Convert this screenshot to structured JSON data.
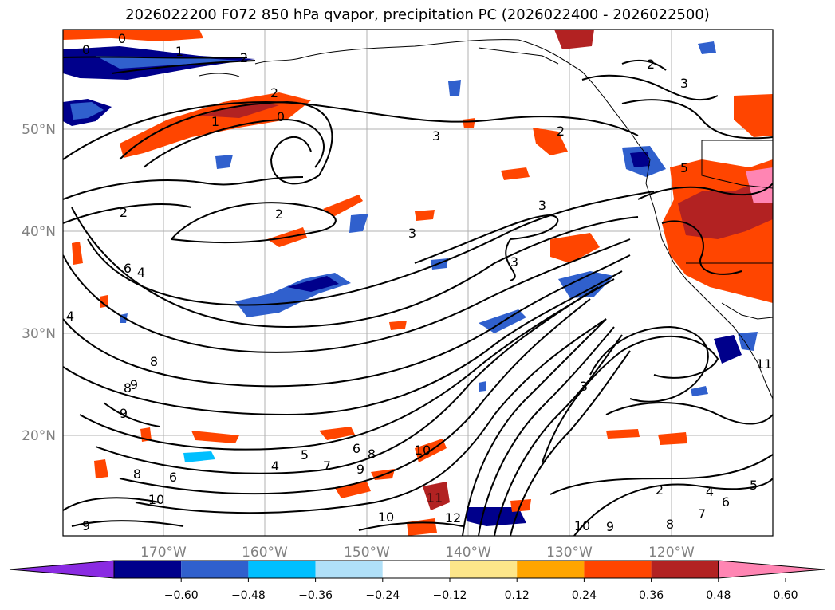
{
  "title": "2026022200 F072 850 hPa qvapor, precipitation PC (2026022400 - 2026022500)",
  "map": {
    "lon_labels": [
      "170°W",
      "160°W",
      "150°W",
      "140°W",
      "130°W",
      "120°W"
    ],
    "lat_labels": [
      "50°N",
      "40°N",
      "30°N",
      "20°N"
    ],
    "grid": true,
    "contour_labels": [
      "0",
      "0",
      "1",
      "2",
      "2",
      "1",
      "0",
      "3",
      "2",
      "3",
      "3",
      "3",
      "2",
      "2",
      "5",
      "3",
      "6",
      "4",
      "4",
      "8",
      "9",
      "10",
      "9",
      "6",
      "8",
      "5",
      "4",
      "7",
      "6",
      "8",
      "9",
      "10",
      "11",
      "10",
      "12",
      "2",
      "3",
      "4",
      "5",
      "6",
      "7",
      "8",
      "9",
      "10",
      "11",
      "2",
      "8",
      "9"
    ]
  },
  "colorbar": {
    "ticks": [
      "−0.60",
      "−0.48",
      "−0.36",
      "−0.24",
      "−0.12",
      "0.12",
      "0.24",
      "0.36",
      "0.48",
      "0.60"
    ],
    "colors": [
      "#8a2be2",
      "#00008b",
      "#3060cd",
      "#00bfff",
      "#b0e0f8",
      "#ffffff",
      "#fde68a",
      "#ffa500",
      "#ff4500",
      "#b22222",
      "#ff85b3"
    ]
  }
}
